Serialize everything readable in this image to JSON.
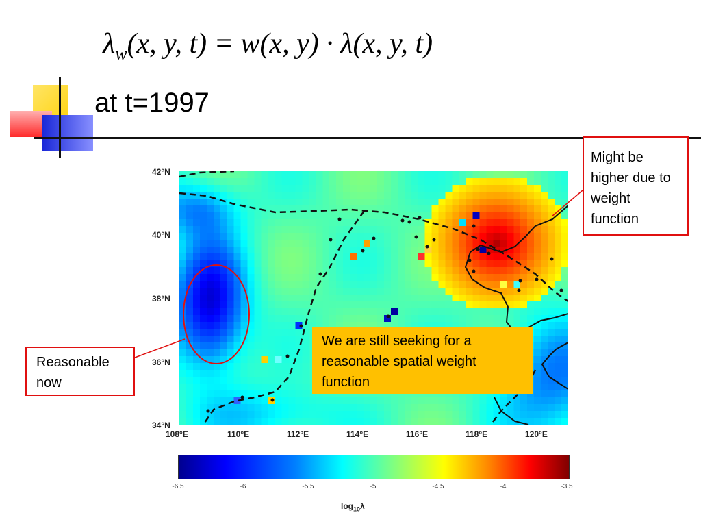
{
  "formula": {
    "lambda_w": "λ",
    "lambda_w_sub": "w",
    "rest": "(x, y, t) = w(x, y) · λ(x, y, t)"
  },
  "subtitle": "at t=1997",
  "map": {
    "lat_labels": [
      "42°N",
      "40°N",
      "38°N",
      "36°N",
      "34°N"
    ],
    "lon_labels": [
      "108°E",
      "110°E",
      "112°E",
      "114°E",
      "116°E",
      "118°E",
      "120°E"
    ],
    "lon_range": [
      108,
      121
    ],
    "lat_range": [
      34,
      42
    ]
  },
  "colorbar": {
    "ticks": [
      "-6.5",
      "-6",
      "-5.5",
      "-5",
      "-4.5",
      "-4",
      "-3.5"
    ],
    "label": "log",
    "label_sub": "10",
    "label_suffix": "λ"
  },
  "callouts": {
    "right": "Might be higher due to weight function",
    "left": "Reasonable now",
    "note": "We are still seeking for a reasonable spatial weight function"
  },
  "colors": {
    "callout_border": "#e01010",
    "note_background": "#ffc000",
    "deco_yellow": "#ffd700",
    "deco_blue": "#2030e0",
    "deco_red": "#ff3030"
  }
}
